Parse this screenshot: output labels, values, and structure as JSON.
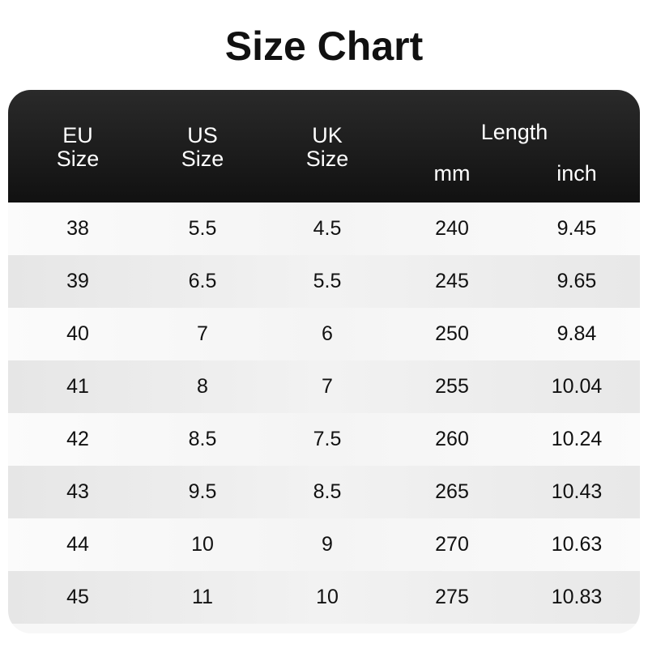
{
  "title": "Size Chart",
  "header": {
    "eu": "EU",
    "eu2": "Size",
    "us": "US",
    "us2": "Size",
    "uk": "UK",
    "uk2": "Size",
    "length": "Length",
    "mm": "mm",
    "inch": "inch"
  },
  "rows": [
    [
      "38",
      "5.5",
      "4.5",
      "240",
      "9.45"
    ],
    [
      "39",
      "6.5",
      "5.5",
      "245",
      "9.65"
    ],
    [
      "40",
      "7",
      "6",
      "250",
      "9.84"
    ],
    [
      "41",
      "8",
      "7",
      "255",
      "10.04"
    ],
    [
      "42",
      "8.5",
      "7.5",
      "260",
      "10.24"
    ],
    [
      "43",
      "9.5",
      "8.5",
      "265",
      "10.43"
    ],
    [
      "44",
      "10",
      "9",
      "270",
      "10.63"
    ],
    [
      "45",
      "11",
      "10",
      "275",
      "10.83"
    ]
  ]
}
